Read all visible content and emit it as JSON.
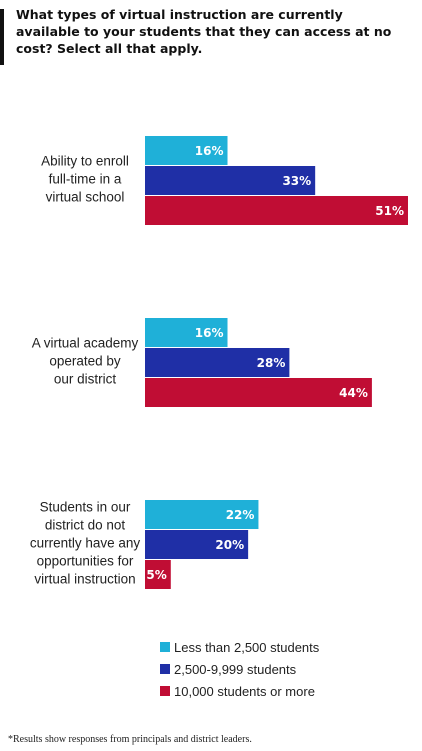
{
  "chart_data": {
    "type": "bar",
    "orientation": "horizontal",
    "title": "What types of virtual instruction are currently available to your students that they can access at no cost?  Select all that apply.",
    "categories": [
      "Ability to enroll full-time in a virtual school",
      "A virtual academy operated by our district",
      "Students in our district do not currently have any opportunities for virtual instruction"
    ],
    "category_lines": [
      [
        "Ability to enroll",
        "full-time in a",
        "virtual school"
      ],
      [
        "A virtual academy",
        "operated by",
        "our district"
      ],
      [
        "Students in our",
        "district do not",
        "currently have any",
        "opportunities for",
        "virtual instruction"
      ]
    ],
    "series": [
      {
        "name": "Less than 2,500 students",
        "values": [
          16,
          16,
          22
        ],
        "color": "#1fb0d8"
      },
      {
        "name": "2,500-9,999 students",
        "values": [
          33,
          28,
          20
        ],
        "color": "#1f2fa6"
      },
      {
        "name": "10,000 students or more",
        "values": [
          51,
          44,
          5
        ],
        "color": "#c00d34"
      }
    ],
    "value_suffix": "%",
    "xlim": [
      0,
      51
    ],
    "grid": false,
    "legend_position": "bottom"
  },
  "footnote": "*Results show responses from principals and district leaders."
}
